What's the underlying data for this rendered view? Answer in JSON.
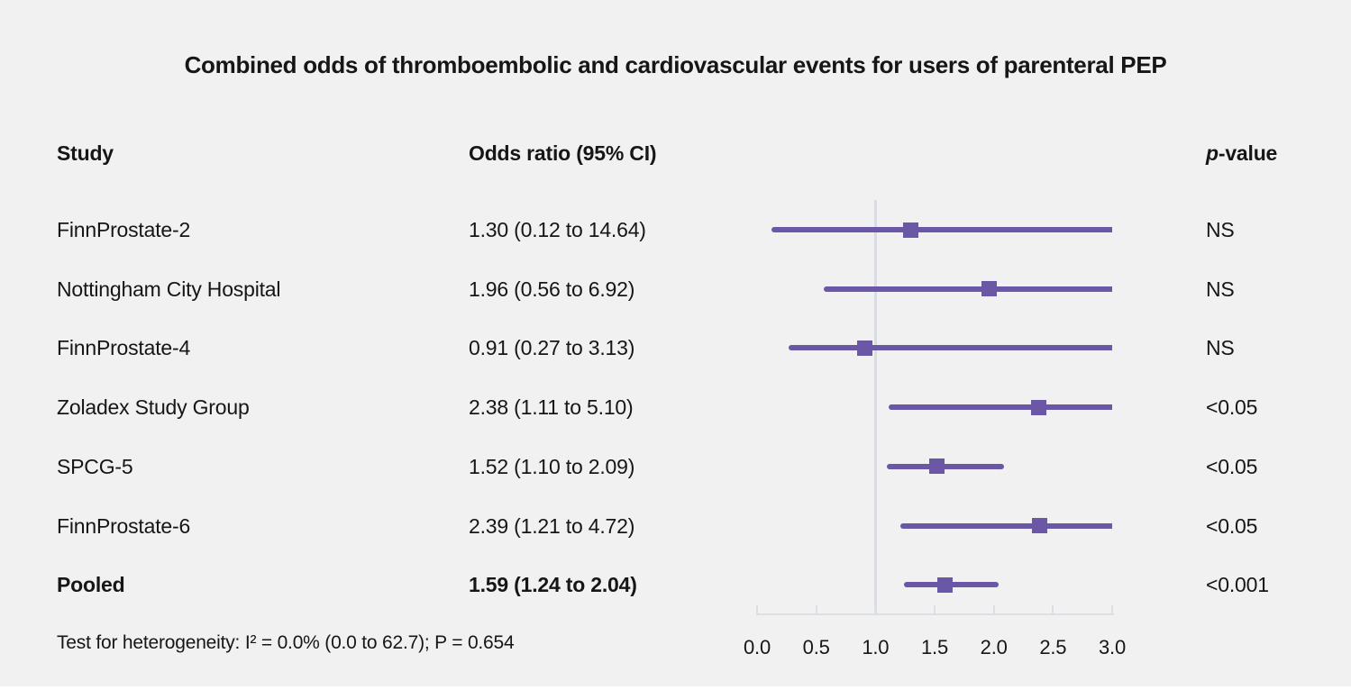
{
  "title": "Combined odds of thromboembolic and cardiovascular events for users of parenteral PEP",
  "columns": {
    "study": "Study",
    "odds_ratio": "Odds ratio (95% CI)",
    "p_value_italic": "p",
    "p_value_rest": "-value"
  },
  "footer": "Test for heterogeneity: I² = 0.0% (0.0 to 62.7); P = 0.654",
  "colors": {
    "marker": "#6a57a6",
    "ci_line": "#6a57a6",
    "axis": "#dcdfe4",
    "reference_line": "#d9dce1",
    "background": "#f2f1f1",
    "text": "#161616"
  },
  "chart_data": {
    "type": "forest",
    "title": "Combined odds of thromboembolic and cardiovascular events for users of parenteral PEP",
    "xlim": [
      0,
      3
    ],
    "reference_x": 1.0,
    "tick_labels": [
      "0.0",
      "0.5",
      "1.0",
      "1.5",
      "2.0",
      "2.5",
      "3.0"
    ],
    "tick_values": [
      0,
      0.5,
      1,
      1.5,
      2,
      2.5,
      3
    ],
    "rows": [
      {
        "study": "FinnProstate-2",
        "or_label": "1.30 (0.12 to 14.64)",
        "or": 1.3,
        "ci_low": 0.12,
        "ci_high": 14.64,
        "p": "NS",
        "bold": false
      },
      {
        "study": "Nottingham City Hospital",
        "or_label": "1.96 (0.56 to 6.92)",
        "or": 1.96,
        "ci_low": 0.56,
        "ci_high": 6.92,
        "p": "NS",
        "bold": false
      },
      {
        "study": "FinnProstate-4",
        "or_label": "0.91 (0.27 to 3.13)",
        "or": 0.91,
        "ci_low": 0.27,
        "ci_high": 3.13,
        "p": "NS",
        "bold": false
      },
      {
        "study": "Zoladex Study Group",
        "or_label": "2.38 (1.11 to 5.10)",
        "or": 2.38,
        "ci_low": 1.11,
        "ci_high": 5.1,
        "p": "<0.05",
        "bold": false
      },
      {
        "study": "SPCG-5",
        "or_label": "1.52 (1.10 to 2.09)",
        "or": 1.52,
        "ci_low": 1.1,
        "ci_high": 2.09,
        "p": "<0.05",
        "bold": false
      },
      {
        "study": "FinnProstate-6",
        "or_label": "2.39 (1.21 to 4.72)",
        "or": 2.39,
        "ci_low": 1.21,
        "ci_high": 4.72,
        "p": "<0.05",
        "bold": false
      },
      {
        "study": "Pooled",
        "or_label": "1.59 (1.24 to 2.04)",
        "or": 1.59,
        "ci_low": 1.24,
        "ci_high": 2.04,
        "p": "<0.001",
        "bold": true
      }
    ]
  }
}
